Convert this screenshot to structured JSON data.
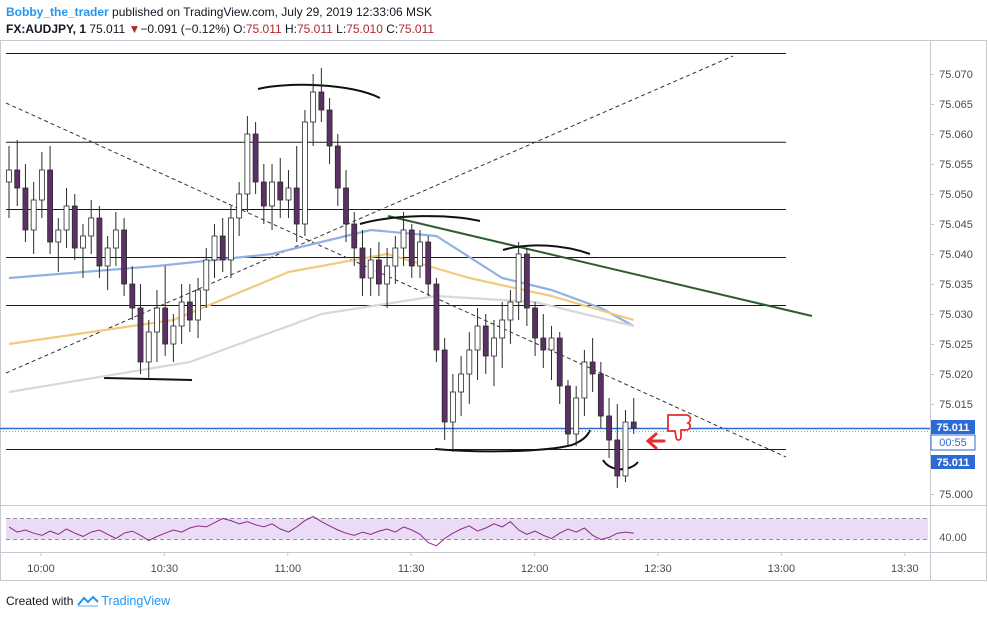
{
  "header": {
    "author": "Bobby_the_trader",
    "published_text": "published on TradingView.com, July 29, 2019 12:33:06 MSK",
    "symbol": "FX:AUDJPY, 1",
    "last": "75.011",
    "change": "−0.091 (−0.12%)",
    "ohlc": {
      "o_label": "O:",
      "o": "75.011",
      "h_label": "H:",
      "h": "75.011",
      "l_label": "L:",
      "l": "75.010",
      "c_label": "C:",
      "c": "75.011"
    }
  },
  "footer": {
    "created_with": "Created with",
    "brand": "TradingView"
  },
  "colors": {
    "bull": "#ffffff",
    "bear": "#5d2f67",
    "wick": "#2b2b2b",
    "ma_fast": "#8fb2e0",
    "ma_mid": "#efcb7a",
    "ma_slow": "#d8d8d8",
    "last_price": "#2c6bd6",
    "rsi_band": "#eadcf5",
    "rsi_line": "#8a2a8e",
    "trend_green": "#2e5e2e",
    "arrow": "#e52d2d"
  },
  "chart_data": {
    "type": "candlestick",
    "interval": "1 minute",
    "ylim": [
      74.996,
      75.074
    ],
    "y_ticks": [
      "75.070",
      "75.065",
      "75.060",
      "75.055",
      "75.050",
      "75.045",
      "75.040",
      "75.035",
      "75.030",
      "75.025",
      "75.020",
      "75.015",
      "75.000"
    ],
    "x_ticks": [
      "10:00",
      "10:30",
      "11:00",
      "11:30",
      "12:00",
      "12:30",
      "13:00",
      "13:30"
    ],
    "price_labels": {
      "last": "75.011",
      "countdown": "00:55",
      "level": "75.011"
    },
    "horizontal_levels": [
      75.0735,
      75.0587,
      75.0475,
      75.0395,
      75.0315,
      75.0075
    ],
    "candles": [
      [
        75.052,
        75.058,
        75.046,
        75.054
      ],
      [
        75.054,
        75.059,
        75.048,
        75.051
      ],
      [
        75.051,
        75.055,
        75.042,
        75.044
      ],
      [
        75.044,
        75.052,
        75.04,
        75.049
      ],
      [
        75.049,
        75.057,
        75.046,
        75.054
      ],
      [
        75.054,
        75.058,
        75.04,
        75.042
      ],
      [
        75.042,
        75.046,
        75.037,
        75.044
      ],
      [
        75.044,
        75.051,
        75.041,
        75.048
      ],
      [
        75.048,
        75.05,
        75.039,
        75.041
      ],
      [
        75.041,
        75.045,
        75.036,
        75.043
      ],
      [
        75.043,
        75.049,
        75.04,
        75.046
      ],
      [
        75.046,
        75.048,
        75.036,
        75.038
      ],
      [
        75.038,
        75.043,
        75.034,
        75.041
      ],
      [
        75.041,
        75.047,
        75.038,
        75.044
      ],
      [
        75.044,
        75.046,
        75.033,
        75.035
      ],
      [
        75.035,
        75.038,
        75.029,
        75.031
      ],
      [
        75.031,
        75.035,
        75.02,
        75.022
      ],
      [
        75.022,
        75.029,
        75.019,
        75.027
      ],
      [
        75.027,
        75.034,
        75.022,
        75.031
      ],
      [
        75.031,
        75.038,
        75.023,
        75.025
      ],
      [
        75.025,
        75.03,
        75.022,
        75.028
      ],
      [
        75.028,
        75.035,
        75.025,
        75.032
      ],
      [
        75.032,
        75.035,
        75.027,
        75.029
      ],
      [
        75.029,
        75.036,
        75.026,
        75.034
      ],
      [
        75.034,
        75.041,
        75.031,
        75.039
      ],
      [
        75.039,
        75.045,
        75.036,
        75.043
      ],
      [
        75.043,
        75.046,
        75.037,
        75.039
      ],
      [
        75.039,
        75.048,
        75.036,
        75.046
      ],
      [
        75.046,
        75.052,
        75.043,
        75.05
      ],
      [
        75.05,
        75.063,
        75.047,
        75.06
      ],
      [
        75.06,
        75.062,
        75.05,
        75.052
      ],
      [
        75.052,
        75.055,
        75.045,
        75.048
      ],
      [
        75.048,
        75.055,
        75.044,
        75.052
      ],
      [
        75.052,
        75.056,
        75.046,
        75.049
      ],
      [
        75.049,
        75.054,
        75.046,
        75.051
      ],
      [
        75.051,
        75.058,
        75.042,
        75.045
      ],
      [
        75.045,
        75.064,
        75.043,
        75.062
      ],
      [
        75.062,
        75.07,
        75.058,
        75.067
      ],
      [
        75.067,
        75.071,
        75.062,
        75.064
      ],
      [
        75.064,
        75.066,
        75.055,
        75.058
      ],
      [
        75.058,
        75.06,
        75.048,
        75.051
      ],
      [
        75.051,
        75.054,
        75.042,
        75.045
      ],
      [
        75.045,
        75.047,
        75.038,
        75.041
      ],
      [
        75.041,
        75.044,
        75.033,
        75.036
      ],
      [
        75.036,
        75.041,
        75.033,
        75.039
      ],
      [
        75.039,
        75.042,
        75.033,
        75.035
      ],
      [
        75.035,
        75.041,
        75.031,
        75.038
      ],
      [
        75.038,
        75.043,
        75.035,
        75.041
      ],
      [
        75.041,
        75.047,
        75.038,
        75.044
      ],
      [
        75.044,
        75.045,
        75.036,
        75.038
      ],
      [
        75.038,
        75.044,
        75.036,
        75.042
      ],
      [
        75.042,
        75.043,
        75.033,
        75.035
      ],
      [
        75.035,
        75.036,
        75.022,
        75.024
      ],
      [
        75.024,
        75.026,
        75.009,
        75.012
      ],
      [
        75.012,
        75.02,
        75.007,
        75.017
      ],
      [
        75.017,
        75.023,
        75.013,
        75.02
      ],
      [
        75.02,
        75.027,
        75.015,
        75.024
      ],
      [
        75.024,
        75.031,
        75.019,
        75.028
      ],
      [
        75.028,
        75.03,
        75.02,
        75.023
      ],
      [
        75.023,
        75.029,
        75.018,
        75.026
      ],
      [
        75.026,
        75.032,
        75.021,
        75.029
      ],
      [
        75.029,
        75.034,
        75.025,
        75.032
      ],
      [
        75.032,
        75.042,
        75.029,
        75.04
      ],
      [
        75.04,
        75.041,
        75.028,
        75.031
      ],
      [
        75.031,
        75.032,
        75.023,
        75.026
      ],
      [
        75.026,
        75.03,
        75.021,
        75.024
      ],
      [
        75.024,
        75.028,
        75.019,
        75.026
      ],
      [
        75.026,
        75.027,
        75.015,
        75.018
      ],
      [
        75.018,
        75.019,
        75.008,
        75.01
      ],
      [
        75.01,
        75.018,
        75.008,
        75.016
      ],
      [
        75.016,
        75.024,
        75.013,
        75.022
      ],
      [
        75.022,
        75.026,
        75.017,
        75.02
      ],
      [
        75.02,
        75.022,
        75.011,
        75.013
      ],
      [
        75.013,
        75.016,
        75.006,
        75.009
      ],
      [
        75.009,
        75.015,
        75.001,
        75.003
      ],
      [
        75.003,
        75.014,
        75.002,
        75.012
      ],
      [
        75.012,
        75.016,
        75.01,
        75.011
      ]
    ],
    "moving_averages": [
      {
        "color": "#8fb2e0",
        "values": [
          [
            0,
            75.036
          ],
          [
            18,
            75.038
          ],
          [
            32,
            75.04
          ],
          [
            44,
            75.044
          ],
          [
            52,
            75.043
          ],
          [
            60,
            75.036
          ],
          [
            66,
            75.034
          ],
          [
            72,
            75.031
          ],
          [
            76,
            75.028
          ]
        ]
      },
      {
        "color": "#efcb7a",
        "values": [
          [
            0,
            75.025
          ],
          [
            20,
            75.029
          ],
          [
            34,
            75.037
          ],
          [
            46,
            75.04
          ],
          [
            56,
            75.036
          ],
          [
            66,
            75.033
          ],
          [
            76,
            75.029
          ]
        ]
      },
      {
        "color": "#d8d8d8",
        "values": [
          [
            0,
            75.017
          ],
          [
            22,
            75.022
          ],
          [
            38,
            75.03
          ],
          [
            52,
            75.033
          ],
          [
            64,
            75.032
          ],
          [
            76,
            75.028
          ]
        ]
      }
    ],
    "rsi": {
      "upper": 60,
      "lower": 40,
      "label": "40.00",
      "values": [
        52,
        47,
        49,
        46,
        44,
        48,
        45,
        50,
        46,
        43,
        47,
        49,
        45,
        41,
        46,
        48,
        44,
        39,
        43,
        46,
        49,
        47,
        51,
        53,
        52,
        56,
        60,
        58,
        55,
        57,
        54,
        52,
        55,
        50,
        47,
        52,
        58,
        62,
        57,
        53,
        49,
        46,
        44,
        47,
        45,
        48,
        50,
        47,
        52,
        49,
        45,
        37,
        34,
        41,
        46,
        50,
        53,
        48,
        51,
        55,
        52,
        57,
        49,
        45,
        48,
        44,
        41,
        46,
        50,
        47,
        51,
        44,
        40,
        42,
        46,
        47,
        46
      ]
    }
  }
}
